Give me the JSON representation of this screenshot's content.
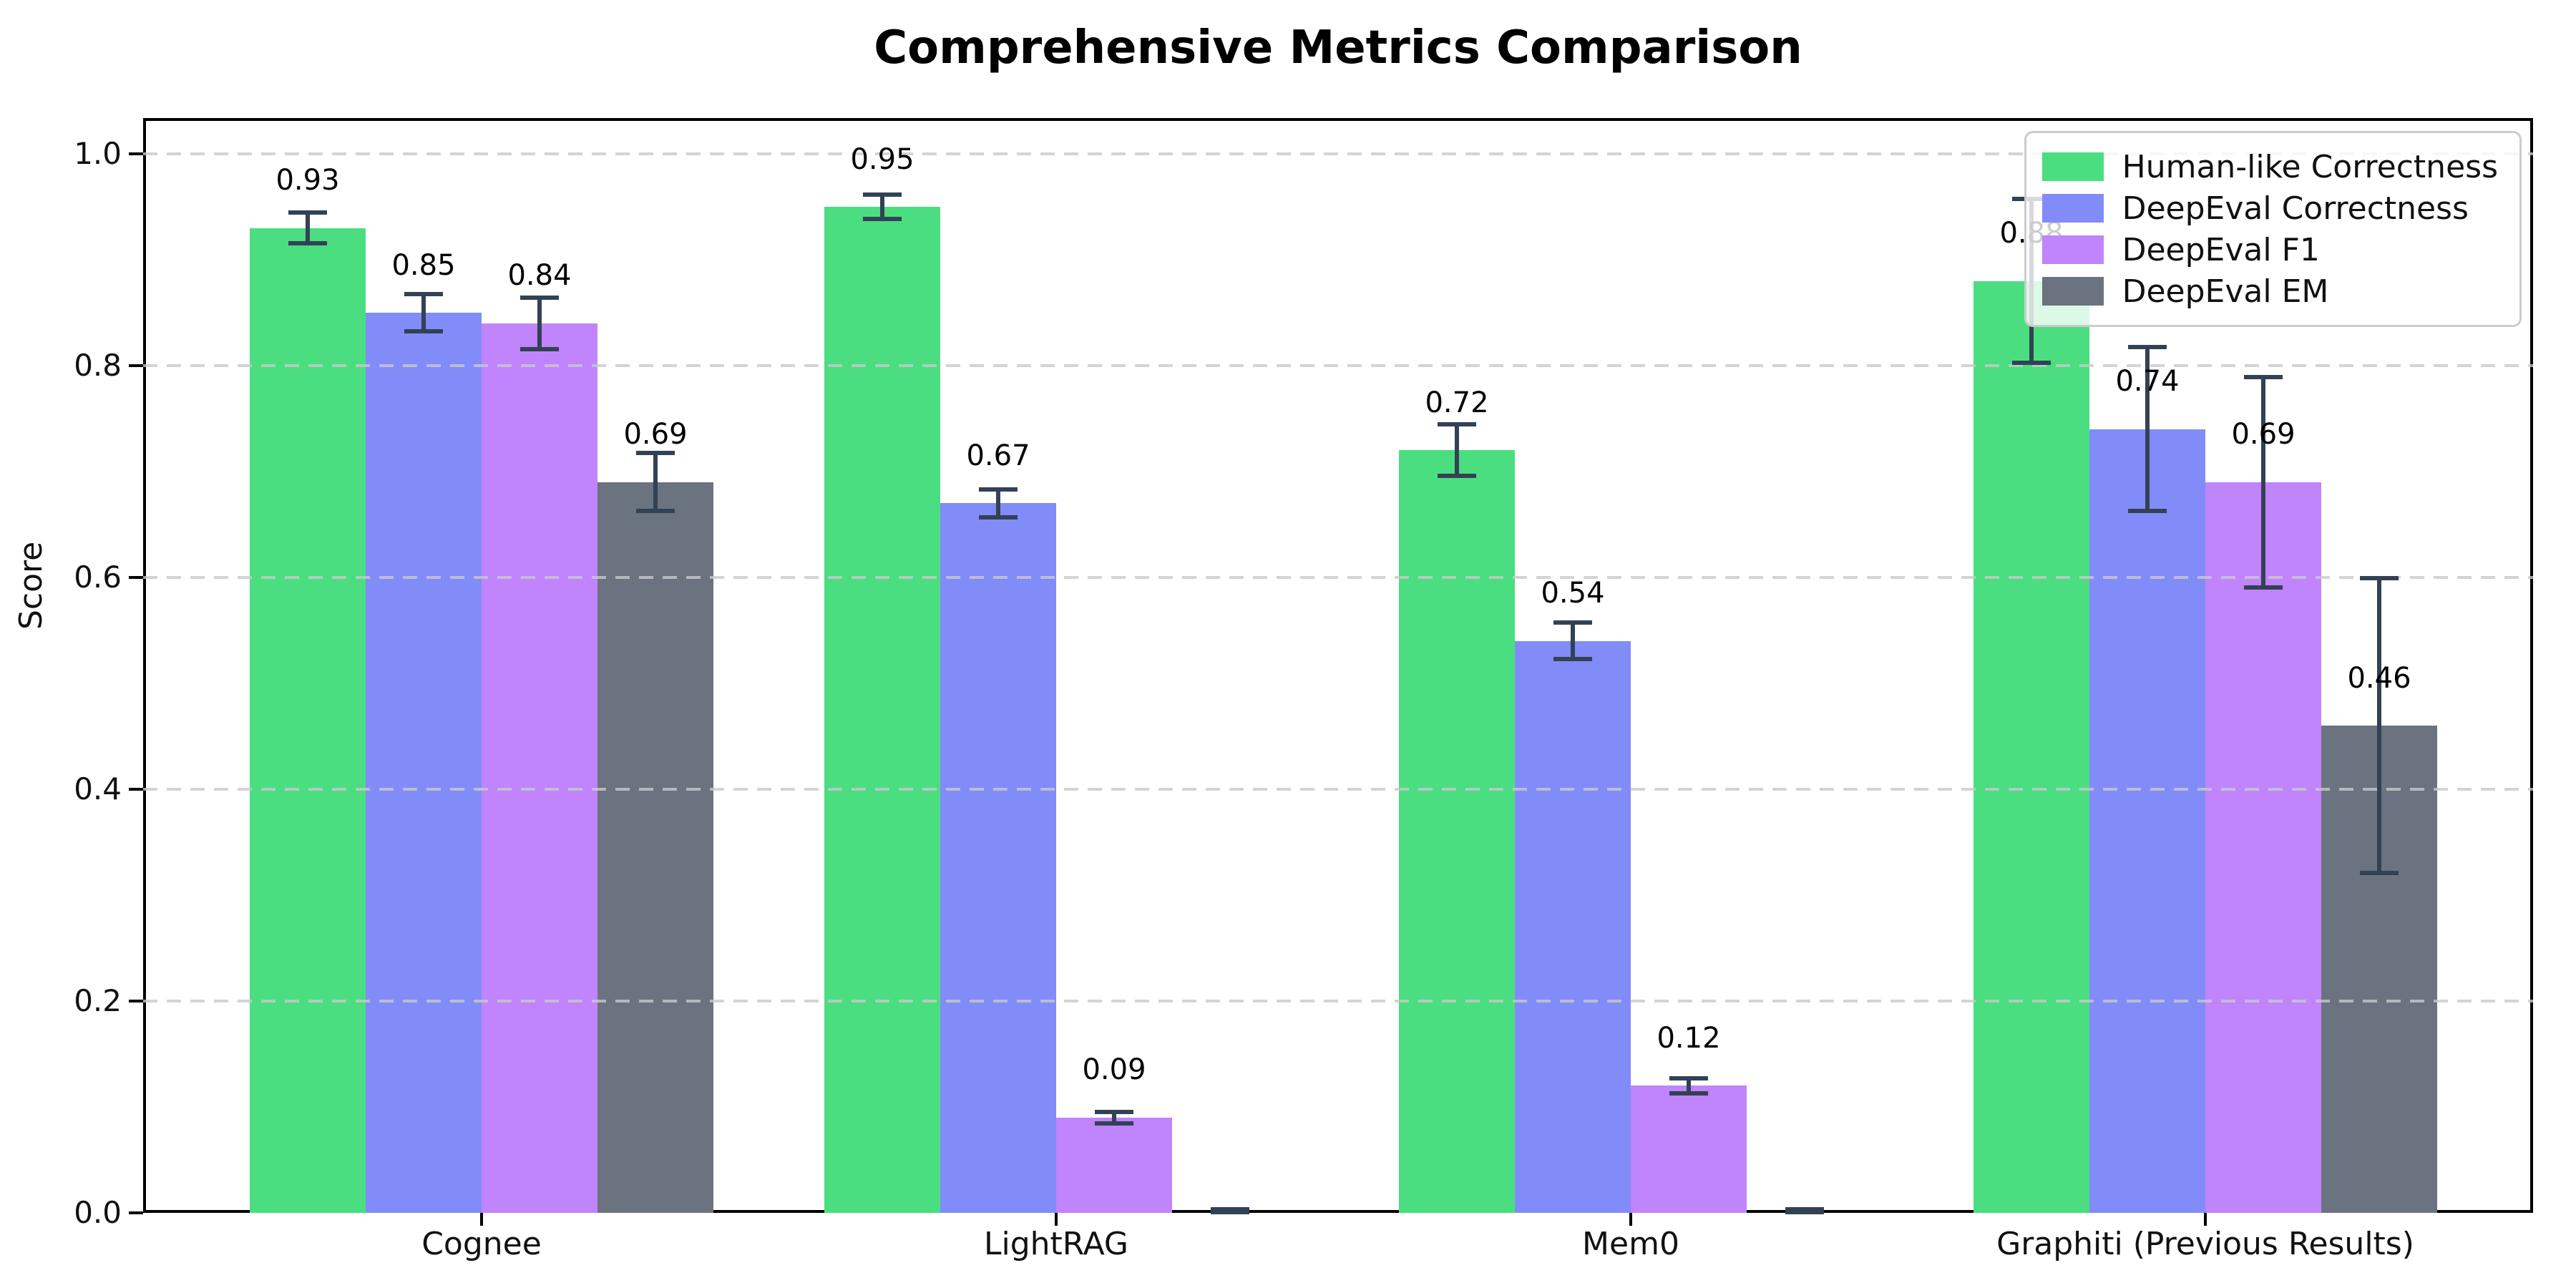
{
  "chart_data": {
    "type": "bar",
    "title": "Comprehensive Metrics Comparison",
    "xlabel": "",
    "ylabel": "Score",
    "categories": [
      "Cognee",
      "LightRAG",
      "Mem0",
      "Graphiti (Previous Results)"
    ],
    "series": [
      {
        "name": "Human-like Correctness",
        "color": "#4ade80",
        "values": [
          0.93,
          0.95,
          0.72,
          0.88
        ],
        "errors": [
          0.015,
          0.012,
          0.025,
          0.078
        ],
        "labels": [
          "0.93",
          "0.95",
          "0.72",
          "0.88"
        ]
      },
      {
        "name": "DeepEval Correctness",
        "color": "#818cf8",
        "values": [
          0.85,
          0.67,
          0.54,
          0.74
        ],
        "errors": [
          0.018,
          0.014,
          0.018,
          0.078
        ],
        "labels": [
          "0.85",
          "0.67",
          "0.54",
          "0.74"
        ]
      },
      {
        "name": "DeepEval F1",
        "color": "#c084fc",
        "values": [
          0.84,
          0.09,
          0.12,
          0.69
        ],
        "errors": [
          0.025,
          0.006,
          0.008,
          0.1
        ],
        "labels": [
          "0.84",
          "0.09",
          "0.12",
          "0.69"
        ]
      },
      {
        "name": "DeepEval EM",
        "color": "#6b7280",
        "values": [
          0.69,
          0.0,
          0.0,
          0.46
        ],
        "errors": [
          0.028,
          0.004,
          0.004,
          0.14
        ],
        "labels": [
          "0.69",
          "",
          "",
          "0.46"
        ]
      }
    ],
    "error_bar_color": "#334155",
    "ytick_labels": [
      "0.0",
      "0.2",
      "0.4",
      "0.6",
      "0.8",
      "1.0"
    ],
    "ytick_values": [
      0.0,
      0.2,
      0.4,
      0.6,
      0.8,
      1.0
    ],
    "ylim": [
      0.0,
      1.034
    ],
    "grid": "horizontal dashed",
    "legend_position": "upper right"
  }
}
